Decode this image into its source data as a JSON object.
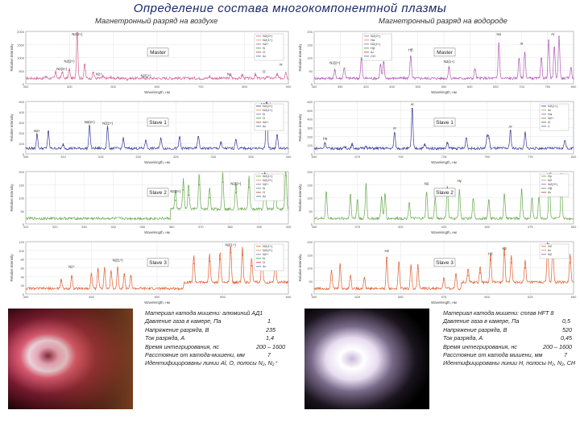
{
  "title": "Определение состава многокомпонентной плазмы",
  "columns": [
    {
      "heading": "Магнетронный разряд на воздухе"
    },
    {
      "heading": "Магнетронный разряд на водороде"
    }
  ],
  "chart_data": [
    {
      "type": "line",
      "panel": "Master",
      "column": 1,
      "color": "#d35f8d",
      "xlim": [
        200,
        900
      ],
      "ylim": [
        0,
        2000
      ],
      "ticks": [
        "300",
        "400",
        "500",
        "600",
        "700",
        "800",
        "900"
      ],
      "yticks": [
        "0",
        "500",
        "1000",
        "1500",
        "2000"
      ],
      "ylabel": "Relative intensity",
      "xlabel": "Wavelength, нм",
      "legend": [
        "N2(2+)",
        "N2(1+)",
        "N2+",
        "N",
        "O",
        "Ar"
      ],
      "peaks": [
        [
          254,
          250
        ],
        [
          280,
          420
        ],
        [
          297,
          420
        ],
        [
          316,
          520
        ],
        [
          337,
          1950
        ],
        [
          357,
          700
        ],
        [
          380,
          420
        ],
        [
          405,
          260
        ],
        [
          427,
          220
        ],
        [
          470,
          140
        ],
        [
          520,
          180
        ],
        [
          600,
          200
        ],
        [
          690,
          250
        ],
        [
          746,
          320
        ],
        [
          777,
          310
        ],
        [
          812,
          320
        ],
        [
          844,
          260
        ],
        [
          870,
          330
        ],
        [
          893,
          420
        ]
      ],
      "labels": [
        {
          "x": 337,
          "y": 1950,
          "t": "N2(2+)"
        },
        {
          "x": 296,
          "y": 520,
          "t": "N2(2+)"
        },
        {
          "x": 316,
          "y": 820,
          "t": "N2(2+)"
        },
        {
          "x": 395,
          "y": 330,
          "t": "N2+"
        },
        {
          "x": 520,
          "y": 260,
          "t": "N2(1+)"
        },
        {
          "x": 740,
          "y": 330,
          "t": "N"
        },
        {
          "x": 835,
          "y": 410,
          "t": "O"
        },
        {
          "x": 880,
          "y": 700,
          "t": "Ar"
        }
      ]
    },
    {
      "type": "line",
      "panel": "Master",
      "column": 2,
      "color": "#b05ab8",
      "xlim": [
        300,
        800
      ],
      "ylim": [
        0,
        200
      ],
      "ticks": [
        "300",
        "350",
        "400",
        "450",
        "500",
        "550",
        "600",
        "650",
        "700",
        "750",
        "800"
      ],
      "yticks": [
        "0",
        "50",
        "100",
        "150",
        "200"
      ],
      "ylabel": "Relative intensity",
      "xlabel": "Wavelength, нм",
      "legend": [
        "N2(2+)",
        "Hα",
        "N2(1+)",
        "Hβ",
        "Ar",
        "CH"
      ],
      "peaks": [
        [
          340,
          50
        ],
        [
          358,
          60
        ],
        [
          391,
          95
        ],
        [
          428,
          70
        ],
        [
          434,
          80
        ],
        [
          486,
          105
        ],
        [
          560,
          60
        ],
        [
          610,
          55
        ],
        [
          656,
          155
        ],
        [
          695,
          95
        ],
        [
          706,
          120
        ],
        [
          738,
          95
        ],
        [
          752,
          165
        ],
        [
          763,
          140
        ],
        [
          772,
          180
        ],
        [
          795,
          60
        ]
      ],
      "labels": [
        {
          "x": 425,
          "y": 110,
          "t": "N2(2+)"
        },
        {
          "x": 486,
          "y": 125,
          "t": "Hβ"
        },
        {
          "x": 656,
          "y": 185,
          "t": "Hα"
        },
        {
          "x": 700,
          "y": 150,
          "t": "Ar"
        },
        {
          "x": 760,
          "y": 190,
          "t": "Ar"
        },
        {
          "x": 340,
          "y": 75,
          "t": "N2(2+)"
        },
        {
          "x": 560,
          "y": 80,
          "t": "N2(1+)"
        }
      ]
    },
    {
      "type": "line",
      "panel": "Slave 1",
      "column": 1,
      "color": "#3a3a9a",
      "xlim": [
        305,
        340
      ],
      "ylim": [
        0,
        550
      ],
      "ticks": [
        "305",
        "310",
        "315",
        "320",
        "325",
        "330",
        "335",
        "340"
      ],
      "yticks": [
        "0",
        "100",
        "200",
        "300",
        "400",
        "500"
      ],
      "ylabel": "Relative intensity",
      "xlabel": "Wavelength, нм",
      "legend": [
        "N2(2+)",
        "N2(1+)",
        "N",
        "O",
        "N2+",
        "Ar"
      ],
      "peaks": [
        [
          306.5,
          200
        ],
        [
          308,
          230
        ],
        [
          310,
          90
        ],
        [
          313.5,
          290
        ],
        [
          315.9,
          270
        ],
        [
          318,
          150
        ],
        [
          321,
          140
        ],
        [
          323,
          160
        ],
        [
          325.5,
          170
        ],
        [
          328,
          180
        ],
        [
          331,
          110
        ],
        [
          333,
          150
        ],
        [
          337.1,
          540
        ],
        [
          338.5,
          200
        ]
      ],
      "labels": [
        {
          "x": 337,
          "y": 540,
          "t": "N2(2+)"
        },
        {
          "x": 315.9,
          "y": 310,
          "t": "N2(2+)"
        },
        {
          "x": 313.5,
          "y": 320,
          "t": "N2(2+)"
        },
        {
          "x": 306.5,
          "y": 230,
          "t": "N2+"
        }
      ]
    },
    {
      "type": "line",
      "panel": "Slave 1",
      "column": 2,
      "color": "#3a3a9a",
      "xlim": [
        650,
        800
      ],
      "ylim": [
        0,
        600
      ],
      "ticks": [
        "650",
        "675",
        "700",
        "725",
        "750",
        "775",
        "800"
      ],
      "yticks": [
        "0",
        "100",
        "200",
        "300",
        "400",
        "500",
        "600"
      ],
      "ylabel": "Relative intensity",
      "xlabel": "Wavelength, нм",
      "legend": [
        "N2(1+)",
        "Ar",
        "Hα",
        "N2+",
        "N",
        "C"
      ],
      "peaks": [
        [
          656.3,
          120
        ],
        [
          668,
          70
        ],
        [
          672,
          100
        ],
        [
          680,
          80
        ],
        [
          696.5,
          240
        ],
        [
          706.7,
          520
        ],
        [
          714,
          100
        ],
        [
          727,
          120
        ],
        [
          738,
          180
        ],
        [
          750,
          200
        ],
        [
          751,
          180
        ],
        [
          763.5,
          260
        ],
        [
          772,
          230
        ],
        [
          795,
          150
        ]
      ],
      "labels": [
        {
          "x": 706.7,
          "y": 560,
          "t": "Ar"
        },
        {
          "x": 763.5,
          "y": 300,
          "t": "Ar"
        },
        {
          "x": 656.3,
          "y": 160,
          "t": "Hα"
        },
        {
          "x": 696.5,
          "y": 280,
          "t": "Ar"
        }
      ]
    },
    {
      "type": "line",
      "panel": "Slave 2",
      "column": 1,
      "color": "#6aa84f",
      "xlim": [
        300,
        400
      ],
      "ylim": [
        0,
        200
      ],
      "ticks": [
        "310",
        "320",
        "330",
        "340",
        "350",
        "360",
        "370",
        "380",
        "390",
        "400"
      ],
      "yticks": [
        "0",
        "50",
        "100",
        "150",
        "200"
      ],
      "ylabel": "Relative intensity",
      "xlabel": "Wavelength, нм",
      "legend": [
        "N2(1+)",
        "N2(2+)",
        "N2+",
        "N",
        "O",
        "Ar"
      ],
      "peaks": [
        [
          357,
          90
        ],
        [
          360,
          130
        ],
        [
          362,
          110
        ],
        [
          366,
          150
        ],
        [
          370,
          100
        ],
        [
          375,
          160
        ],
        [
          380,
          120
        ],
        [
          385,
          140
        ],
        [
          391,
          175
        ],
        [
          395,
          120
        ],
        [
          399,
          185
        ]
      ],
      "labels": [
        {
          "x": 357,
          "y": 120,
          "t": "N2(2+)"
        },
        {
          "x": 380,
          "y": 150,
          "t": "N2(2+)"
        },
        {
          "x": 391,
          "y": 195,
          "t": "N2+"
        }
      ]
    },
    {
      "type": "line",
      "panel": "Slave 2",
      "column": 2,
      "color": "#6aa84f",
      "xlim": [
        350,
        500
      ],
      "ylim": [
        0,
        200
      ],
      "ticks": [
        "350",
        "375",
        "400",
        "425",
        "450",
        "475",
        "500"
      ],
      "yticks": [
        "0",
        "50",
        "100",
        "150",
        "200"
      ],
      "ylabel": "Relative intensity",
      "xlabel": "Wavelength, нм",
      "legend": [
        "Hγ",
        "N2",
        "N2(2+)",
        "Hβ",
        "Ar"
      ],
      "peaks": [
        [
          357,
          120
        ],
        [
          371,
          110
        ],
        [
          375,
          90
        ],
        [
          380,
          150
        ],
        [
          389,
          100
        ],
        [
          391,
          110
        ],
        [
          405,
          80
        ],
        [
          415,
          120
        ],
        [
          420,
          100
        ],
        [
          427,
          140
        ],
        [
          434,
          130
        ],
        [
          442,
          95
        ],
        [
          451,
          90
        ],
        [
          460,
          110
        ],
        [
          470,
          130
        ],
        [
          476,
          95
        ],
        [
          480,
          100
        ],
        [
          486,
          170
        ],
        [
          493,
          160
        ]
      ],
      "labels": [
        {
          "x": 415,
          "y": 150,
          "t": "N2"
        },
        {
          "x": 434,
          "y": 160,
          "t": "Hγ"
        },
        {
          "x": 486,
          "y": 190,
          "t": "Hβ"
        },
        {
          "x": 493,
          "y": 185,
          "t": "Ar"
        }
      ]
    },
    {
      "type": "line",
      "panel": "Slave 3",
      "column": 1,
      "color": "#e06030",
      "xlim": [
        400,
        600
      ],
      "ylim": [
        0,
        120
      ],
      "ticks": [
        "400",
        "450",
        "500",
        "550",
        "600"
      ],
      "yticks": [
        "0",
        "20",
        "40",
        "60",
        "80",
        "100",
        "120"
      ],
      "ylabel": "Relative intensity",
      "xlabel": "Wavelength, нм",
      "legend": [
        "N2(1+)",
        "N2(2+)",
        "N2+",
        "N",
        "O",
        "Ar"
      ],
      "peaks": [
        [
          427,
          30
        ],
        [
          435,
          40
        ],
        [
          450,
          45
        ],
        [
          455,
          55
        ],
        [
          460,
          60
        ],
        [
          465,
          50
        ],
        [
          470,
          58
        ],
        [
          475,
          45
        ],
        [
          480,
          40
        ],
        [
          528,
          70
        ],
        [
          540,
          75
        ],
        [
          548,
          80
        ],
        [
          556,
          95
        ],
        [
          565,
          90
        ],
        [
          572,
          65
        ],
        [
          580,
          75
        ],
        [
          590,
          70
        ]
      ],
      "labels": [
        {
          "x": 556,
          "y": 110,
          "t": "N2(1+)"
        },
        {
          "x": 470,
          "y": 75,
          "t": "N2(1+)"
        },
        {
          "x": 435,
          "y": 60,
          "t": "N2+"
        }
      ]
    },
    {
      "type": "line",
      "panel": "Slave 3",
      "column": 2,
      "color": "#e06030",
      "xlim": [
        500,
        650
      ],
      "ylim": [
        0,
        200
      ],
      "ticks": [
        "500",
        "525",
        "550",
        "575",
        "600",
        "625",
        "650"
      ],
      "yticks": [
        "0",
        "50",
        "100",
        "150",
        "200"
      ],
      "ylabel": "Relative intensity",
      "xlabel": "Wavelength, нм",
      "legend": [
        "H2",
        "Ar",
        "N2"
      ],
      "peaks": [
        [
          510,
          90
        ],
        [
          515,
          110
        ],
        [
          521,
          70
        ],
        [
          529,
          60
        ],
        [
          542,
          140
        ],
        [
          549,
          120
        ],
        [
          556,
          105
        ],
        [
          560,
          110
        ],
        [
          575,
          60
        ],
        [
          582,
          75
        ],
        [
          589,
          70
        ],
        [
          596,
          80
        ],
        [
          602,
          130
        ],
        [
          610,
          150
        ],
        [
          614,
          120
        ],
        [
          622,
          100
        ],
        [
          635,
          170
        ],
        [
          638,
          165
        ],
        [
          648,
          120
        ]
      ],
      "labels": [
        {
          "x": 542,
          "y": 160,
          "t": "H2"
        },
        {
          "x": 602,
          "y": 150,
          "t": "H2"
        },
        {
          "x": 610,
          "y": 170,
          "t": "H2"
        },
        {
          "x": 635,
          "y": 190,
          "t": "H2"
        }
      ]
    }
  ],
  "left_params": [
    [
      "Материал катода мишени: алюминий АД1",
      ""
    ],
    [
      "Давление газа в камере, Па",
      "1"
    ],
    [
      "Напряжение разряда, В",
      "235"
    ],
    [
      "Ток разряда, А",
      "1,4"
    ],
    [
      "Время интегрирования, нс",
      "200 – 1600"
    ],
    [
      "Расстояние от катода-мишени, мм",
      "7"
    ],
    [
      "Идентифицированы линии Al, O, полосы N₂, N₂⁺",
      ""
    ]
  ],
  "right_params": [
    [
      "Материал катода мишени: сплав HFT 8",
      ""
    ],
    [
      "Давление газа в камере, Па",
      "0,5"
    ],
    [
      "Напряжение разряда, В",
      "520"
    ],
    [
      "Ток разряда, А",
      "0,45"
    ],
    [
      "Время интегрирования, нс",
      "200 – 1600"
    ],
    [
      "Расстояние от катода мишени, мм",
      "7"
    ],
    [
      "Идентифицированы линии H, полосы H₂, N₂, CH",
      ""
    ]
  ]
}
